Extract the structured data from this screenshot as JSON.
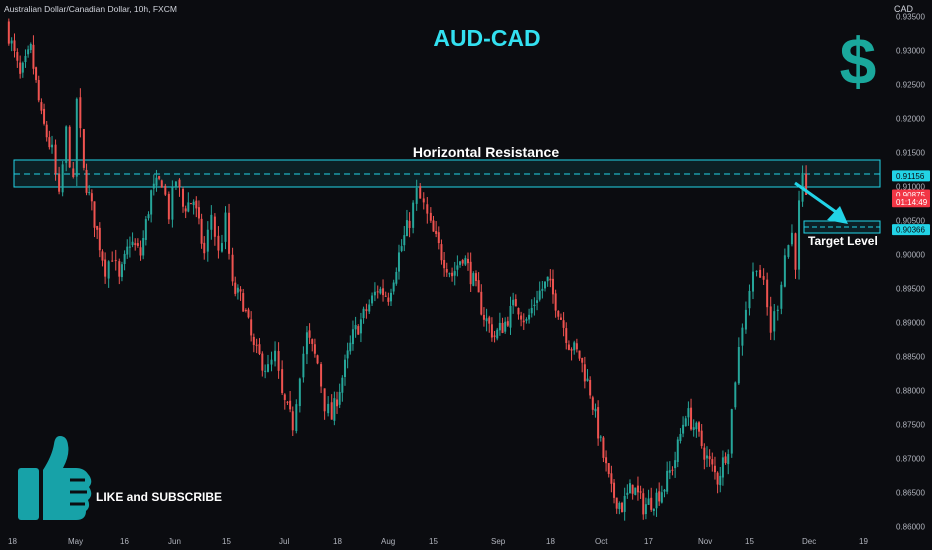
{
  "header": {
    "symbol_info": "Australian Dollar/Canadian Dollar, 10h, FXCM",
    "title": "AUD-CAD"
  },
  "annotations": {
    "resistance_label": "Horizontal Resistance",
    "target_label": "Target Level",
    "like_subscribe": "LIKE and SUBSCRIBE",
    "dollar_glyph": "$"
  },
  "price_axis": {
    "currency": "CAD",
    "ticks": [
      "0.93500",
      "0.93000",
      "0.92500",
      "0.92000",
      "0.91500",
      "0.91000",
      "0.90500",
      "0.90000",
      "0.89500",
      "0.89000",
      "0.88500",
      "0.88000",
      "0.87500",
      "0.87000",
      "0.86500",
      "0.86000"
    ],
    "badges": [
      {
        "label": "0.91156",
        "value": 0.91156,
        "color": "#22d3e6"
      },
      {
        "label": "0.90875",
        "value": 0.90875,
        "color": "#f23645"
      },
      {
        "label": "01:14:49",
        "value": 0.90775,
        "color": "#f23645"
      },
      {
        "label": "0.90366",
        "value": 0.90366,
        "color": "#22d3e6"
      }
    ]
  },
  "time_axis": {
    "labels": [
      "18",
      "May",
      "16",
      "Jun",
      "15",
      "Jul",
      "18",
      "Aug",
      "15",
      "Sep",
      "18",
      "Oct",
      "17",
      "Nov",
      "15",
      "Dec",
      "19"
    ]
  },
  "colors": {
    "background": "#0b0c10",
    "bullish": "#26a69a",
    "bearish": "#ef5350",
    "accent": "#22d3e6",
    "title": "#33e0f0",
    "dollar": "#1aa89c",
    "thumb": "#17a2a8"
  },
  "chart_data": {
    "type": "candlestick",
    "title": "AUD-CAD",
    "ylabel": "CAD",
    "ylim": [
      0.8595,
      0.9355
    ],
    "x_range": [
      "Apr 18",
      "Dec 22"
    ],
    "resistance_zone": {
      "low": 0.91,
      "high": 0.914,
      "dashed_level": 0.91156
    },
    "target_zone": {
      "low": 0.9034,
      "high": 0.9048,
      "dashed_level": 0.90366
    },
    "last_price": 0.90875,
    "path": [
      [
        "Apr 18",
        0.934
      ],
      [
        "Apr 22",
        0.926
      ],
      [
        "Apr 25",
        0.93
      ],
      [
        "Apr 28",
        0.92
      ],
      [
        "May 1",
        0.915
      ],
      [
        "May 3",
        0.908
      ],
      [
        "May 5",
        0.918
      ],
      [
        "May 7",
        0.91
      ],
      [
        "May 8",
        0.923
      ],
      [
        "May 10",
        0.912
      ],
      [
        "May 13",
        0.905
      ],
      [
        "May 16",
        0.898
      ],
      [
        "May 18",
        0.9
      ],
      [
        "May 20",
        0.896
      ],
      [
        "May 23",
        0.902
      ],
      [
        "May 26",
        0.9
      ],
      [
        "May 29",
        0.909
      ],
      [
        "Jun 1",
        0.911
      ],
      [
        "Jun 3",
        0.906
      ],
      [
        "Jun 5",
        0.911
      ],
      [
        "Jun 7",
        0.907
      ],
      [
        "Jun 10",
        0.908
      ],
      [
        "Jun 13",
        0.9
      ],
      [
        "Jun 15",
        0.906
      ],
      [
        "Jun 17",
        0.9
      ],
      [
        "Jun 19",
        0.905
      ],
      [
        "Jun 21",
        0.895
      ],
      [
        "Jun 24",
        0.893
      ],
      [
        "Jun 27",
        0.886
      ],
      [
        "Jul 1",
        0.883
      ],
      [
        "Jul 3",
        0.885
      ],
      [
        "Jul 5",
        0.879
      ],
      [
        "Jul 8",
        0.875
      ],
      [
        "Jul 10",
        0.883
      ],
      [
        "Jul 12",
        0.888
      ],
      [
        "Jul 15",
        0.884
      ],
      [
        "Jul 17",
        0.878
      ],
      [
        "Jul 19",
        0.876
      ],
      [
        "Jul 22",
        0.882
      ],
      [
        "Jul 25",
        0.888
      ],
      [
        "Jul 28",
        0.891
      ],
      [
        "Aug 1",
        0.895
      ],
      [
        "Aug 4",
        0.894
      ],
      [
        "Aug 7",
        0.9
      ],
      [
        "Aug 10",
        0.905
      ],
      [
        "Aug 12",
        0.909
      ],
      [
        "Aug 14",
        0.907
      ],
      [
        "Aug 16",
        0.904
      ],
      [
        "Aug 19",
        0.9
      ],
      [
        "Aug 22",
        0.897
      ],
      [
        "Aug 25",
        0.9
      ],
      [
        "Aug 28",
        0.896
      ],
      [
        "Aug 31",
        0.891
      ],
      [
        "Sep 3",
        0.888
      ],
      [
        "Sep 6",
        0.89
      ],
      [
        "Sep 9",
        0.893
      ],
      [
        "Sep 12",
        0.89
      ],
      [
        "Sep 15",
        0.894
      ],
      [
        "Sep 18",
        0.896
      ],
      [
        "Sep 21",
        0.892
      ],
      [
        "Sep 24",
        0.887
      ],
      [
        "Sep 27",
        0.885
      ],
      [
        "Sep 30",
        0.88
      ],
      [
        "Oct 3",
        0.872
      ],
      [
        "Oct 6",
        0.865
      ],
      [
        "Oct 9",
        0.863
      ],
      [
        "Oct 12",
        0.866
      ],
      [
        "Oct 15",
        0.863
      ],
      [
        "Oct 18",
        0.864
      ],
      [
        "Oct 21",
        0.866
      ],
      [
        "Oct 24",
        0.87
      ],
      [
        "Oct 27",
        0.877
      ],
      [
        "Oct 30",
        0.874
      ],
      [
        "Nov 2",
        0.87
      ],
      [
        "Nov 5",
        0.867
      ],
      [
        "Nov 8",
        0.872
      ],
      [
        "Nov 10",
        0.882
      ],
      [
        "Nov 12",
        0.89
      ],
      [
        "Nov 14",
        0.895
      ],
      [
        "Nov 16",
        0.899
      ],
      [
        "Nov 18",
        0.895
      ],
      [
        "Nov 20",
        0.889
      ],
      [
        "Nov 22",
        0.893
      ],
      [
        "Nov 24",
        0.9
      ],
      [
        "Nov 26",
        0.903
      ],
      [
        "Nov 27",
        0.899
      ],
      [
        "Nov 28",
        0.907
      ],
      [
        "Nov 29",
        0.911
      ],
      [
        "Nov 30",
        0.9087
      ]
    ]
  }
}
